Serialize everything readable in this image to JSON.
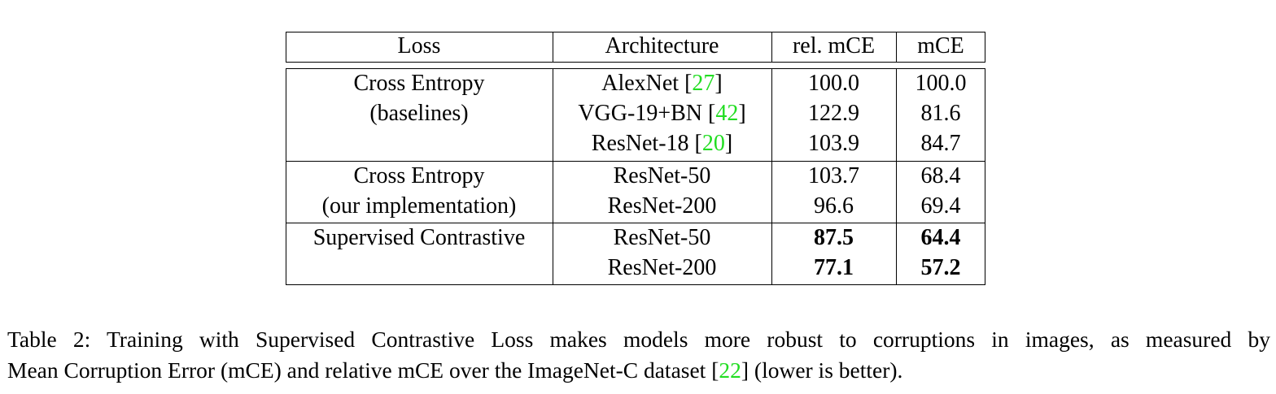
{
  "table": {
    "headers": [
      "Loss",
      "Architecture",
      "rel. mCE",
      "mCE"
    ],
    "groups": [
      {
        "loss_lines": [
          "Cross Entropy",
          "(baselines)"
        ],
        "rows": [
          {
            "arch": "AlexNet",
            "ref": "27",
            "rel_mce": "100.0",
            "mce": "100.0"
          },
          {
            "arch": "VGG-19+BN",
            "ref": "42",
            "rel_mce": "122.9",
            "mce": "81.6"
          },
          {
            "arch": "ResNet-18",
            "ref": "20",
            "rel_mce": "103.9",
            "mce": "84.7"
          }
        ]
      },
      {
        "loss_lines": [
          "Cross Entropy",
          "(our implementation)"
        ],
        "rows": [
          {
            "arch": "ResNet-50",
            "rel_mce": "103.7",
            "mce": "68.4"
          },
          {
            "arch": "ResNet-200",
            "rel_mce": "96.6",
            "mce": "69.4"
          }
        ]
      },
      {
        "loss_lines": [
          "Supervised Contrastive"
        ],
        "rows": [
          {
            "arch": "ResNet-50",
            "rel_mce": "87.5",
            "mce": "64.4",
            "bold": true
          },
          {
            "arch": "ResNet-200",
            "rel_mce": "77.1",
            "mce": "57.2",
            "bold": true
          }
        ]
      }
    ]
  },
  "caption": {
    "line1": "Table 2: Training with Supervised Contrastive Loss makes models more robust to corruptions in images, as measured by",
    "line2_before": "Mean Corruption Error (mCE) and relative mCE over the ImageNet-C dataset [",
    "line2_ref": "22",
    "line2_after": "] (lower is better)."
  },
  "colors": {
    "citation": "#22dd22"
  }
}
